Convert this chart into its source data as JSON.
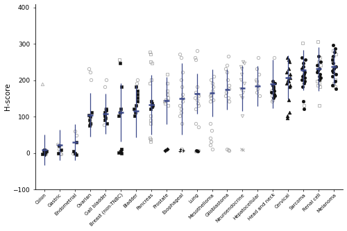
{
  "categories": [
    "Colon",
    "Gastric",
    "Endometrial",
    "Ovarian",
    "Gall bladder",
    "Breast (non-TNBC)",
    "Bladder",
    "Pancreas",
    "Prostate",
    "Esophageal",
    "Lung",
    "Mesothelioma",
    "Glioblastoma",
    "Neuroendocrine",
    "Hepatocellular",
    "Head and neck",
    "Cervical",
    "Sarcoma",
    "Renal cell",
    "Melanoma"
  ],
  "ylim": [
    -100,
    410
  ],
  "yticks": [
    -100,
    0,
    100,
    200,
    300,
    400
  ],
  "ylabel": "H-score",
  "error_color": "#3d4a8a",
  "groups": {
    "Colon": {
      "mean": 10,
      "sd": 42,
      "pts_dark": [
        {
          "y": -5,
          "m": "v"
        },
        {
          "y": 5,
          "m": "s"
        },
        {
          "y": 10,
          "m": "s"
        },
        {
          "y": 0,
          "m": "s"
        },
        {
          "y": -3,
          "m": "s"
        },
        {
          "y": 8,
          "m": "s"
        }
      ],
      "pts_gray": [
        {
          "y": 190,
          "m": "^"
        },
        {
          "y": -2,
          "m": "o"
        },
        {
          "y": 3,
          "m": "o"
        }
      ]
    },
    "Gastric": {
      "mean": 22,
      "sd": 42,
      "pts_dark": [
        {
          "y": 20,
          "m": "s"
        },
        {
          "y": 10,
          "m": "s"
        },
        {
          "y": 0,
          "m": "s"
        }
      ],
      "pts_gray": [
        {
          "y": 5,
          "m": "o"
        },
        {
          "y": 0,
          "m": "o"
        },
        {
          "y": -3,
          "m": "o"
        },
        {
          "y": 12,
          "m": "o"
        },
        {
          "y": 25,
          "m": "o"
        }
      ]
    },
    "Endometrial": {
      "mean": 30,
      "sd": 50,
      "pts_dark": [
        {
          "y": 30,
          "m": "s"
        },
        {
          "y": 5,
          "m": "s"
        },
        {
          "y": 0,
          "m": "s"
        },
        {
          "y": -5,
          "m": "s"
        }
      ],
      "pts_gray": [
        {
          "y": 60,
          "m": "o"
        },
        {
          "y": 50,
          "m": "o"
        },
        {
          "y": 0,
          "m": "o"
        },
        {
          "y": -3,
          "m": "o"
        }
      ]
    },
    "Ovarian": {
      "mean": 105,
      "sd": 60,
      "pts_dark": [
        {
          "y": 105,
          "m": "s"
        },
        {
          "y": 82,
          "m": "s"
        },
        {
          "y": 76,
          "m": "s"
        },
        {
          "y": 100,
          "m": "s"
        },
        {
          "y": 92,
          "m": "s"
        },
        {
          "y": 112,
          "m": "s"
        }
      ],
      "pts_gray": [
        {
          "y": 232,
          "m": "o"
        },
        {
          "y": 222,
          "m": "o"
        },
        {
          "y": 202,
          "m": "o"
        },
        {
          "y": 82,
          "m": "o"
        },
        {
          "y": 77,
          "m": "o"
        }
      ]
    },
    "Gall bladder": {
      "mean": 108,
      "sd": 55,
      "pts_dark": [
        {
          "y": 112,
          "m": "s"
        },
        {
          "y": 102,
          "m": "s"
        },
        {
          "y": 122,
          "m": "s"
        },
        {
          "y": 107,
          "m": "s"
        },
        {
          "y": 97,
          "m": "s"
        },
        {
          "y": 117,
          "m": "s"
        },
        {
          "y": 92,
          "m": "s"
        },
        {
          "y": 82,
          "m": "s"
        }
      ],
      "pts_gray": [
        {
          "y": 202,
          "m": "o"
        },
        {
          "y": 182,
          "m": "o"
        },
        {
          "y": 122,
          "m": "o"
        },
        {
          "y": 77,
          "m": "o"
        }
      ]
    },
    "Breast (non-TNBC)": {
      "mean": 112,
      "sd": 80,
      "pts_dark": [
        {
          "y": 248,
          "m": "s"
        },
        {
          "y": 183,
          "m": "s"
        },
        {
          "y": 122,
          "m": "s"
        },
        {
          "y": 112,
          "m": "s"
        },
        {
          "y": 102,
          "m": "s"
        },
        {
          "y": 2,
          "m": "s"
        },
        {
          "y": 0,
          "m": "s"
        },
        {
          "y": 5,
          "m": "s"
        },
        {
          "y": 12,
          "m": "s"
        }
      ],
      "pts_gray": [
        {
          "y": 257,
          "m": "s"
        },
        {
          "y": 12,
          "m": "s"
        },
        {
          "y": 5,
          "m": "s"
        }
      ]
    },
    "Bladder": {
      "mean": 115,
      "sd": 72,
      "pts_dark": [
        {
          "y": 122,
          "m": "s"
        },
        {
          "y": 112,
          "m": "s"
        },
        {
          "y": 132,
          "m": "s"
        },
        {
          "y": 102,
          "m": "s"
        },
        {
          "y": 142,
          "m": "s"
        },
        {
          "y": 162,
          "m": "s"
        },
        {
          "y": 172,
          "m": "s"
        },
        {
          "y": 182,
          "m": "s"
        },
        {
          "y": 152,
          "m": "s"
        }
      ],
      "pts_gray": [
        {
          "y": 202,
          "m": "o"
        },
        {
          "y": 192,
          "m": "o"
        }
      ]
    },
    "Pancreas": {
      "mean": 133,
      "sd": 82,
      "pts_dark": [
        {
          "y": 132,
          "m": "s"
        },
        {
          "y": 137,
          "m": "s"
        },
        {
          "y": 142,
          "m": "s"
        },
        {
          "y": 122,
          "m": "s"
        },
        {
          "y": 127,
          "m": "s"
        },
        {
          "y": 132,
          "m": "s"
        }
      ],
      "pts_gray": [
        {
          "y": 277,
          "m": "s"
        },
        {
          "y": 272,
          "m": "s"
        },
        {
          "y": 252,
          "m": "s"
        },
        {
          "y": 247,
          "m": "s"
        },
        {
          "y": 202,
          "m": "s"
        },
        {
          "y": 192,
          "m": "s"
        },
        {
          "y": 102,
          "m": "s"
        },
        {
          "y": 92,
          "m": "s"
        },
        {
          "y": 82,
          "m": "s"
        },
        {
          "y": 42,
          "m": "s"
        },
        {
          "y": 37,
          "m": "s"
        },
        {
          "y": 32,
          "m": "s"
        }
      ]
    },
    "Prostate": {
      "mean": 145,
      "sd": 65,
      "pts_dark": [
        {
          "y": 7,
          "m": "D"
        },
        {
          "y": 12,
          "m": "D"
        }
      ],
      "pts_gray": [
        {
          "y": 217,
          "m": "s"
        },
        {
          "y": 192,
          "m": "s"
        },
        {
          "y": 152,
          "m": "s"
        },
        {
          "y": 142,
          "m": "s"
        },
        {
          "y": 132,
          "m": "s"
        },
        {
          "y": 137,
          "m": "s"
        },
        {
          "y": 147,
          "m": "s"
        },
        {
          "y": 162,
          "m": "s"
        },
        {
          "y": 172,
          "m": "s"
        }
      ]
    },
    "Esophageal": {
      "mean": 150,
      "sd": 98,
      "pts_dark": [
        {
          "y": 7,
          "m": "+"
        },
        {
          "y": 5,
          "m": "+"
        },
        {
          "y": 12,
          "m": "+"
        }
      ],
      "pts_gray": [
        {
          "y": 272,
          "m": "o"
        },
        {
          "y": 262,
          "m": "o"
        },
        {
          "y": 222,
          "m": "o"
        },
        {
          "y": 202,
          "m": "o"
        },
        {
          "y": 182,
          "m": "o"
        },
        {
          "y": 162,
          "m": "o"
        },
        {
          "y": 152,
          "m": "o"
        },
        {
          "y": 142,
          "m": "o"
        },
        {
          "y": 132,
          "m": "o"
        },
        {
          "y": 122,
          "m": "o"
        },
        {
          "y": 112,
          "m": "o"
        },
        {
          "y": 102,
          "m": "o"
        },
        {
          "y": 82,
          "m": "o"
        },
        {
          "y": 12,
          "m": "o"
        },
        {
          "y": 7,
          "m": "o"
        }
      ]
    },
    "Lung": {
      "mean": 163,
      "sd": 55,
      "pts_dark": [
        {
          "y": 7,
          "m": "o"
        },
        {
          "y": 5,
          "m": "o"
        }
      ],
      "pts_gray": [
        {
          "y": 282,
          "m": "o"
        },
        {
          "y": 262,
          "m": "o"
        },
        {
          "y": 257,
          "m": "o"
        },
        {
          "y": 182,
          "m": "o"
        },
        {
          "y": 167,
          "m": "o"
        },
        {
          "y": 162,
          "m": "o"
        },
        {
          "y": 157,
          "m": "o"
        },
        {
          "y": 152,
          "m": "o"
        },
        {
          "y": 147,
          "m": "o"
        },
        {
          "y": 137,
          "m": "o"
        },
        {
          "y": 132,
          "m": "o"
        },
        {
          "y": 122,
          "m": "o"
        },
        {
          "y": 82,
          "m": "o"
        },
        {
          "y": 72,
          "m": "o"
        },
        {
          "y": 7,
          "m": "o"
        },
        {
          "y": 5,
          "m": "o"
        }
      ]
    },
    "Mesothelioma": {
      "mean": 165,
      "sd": 65,
      "pts_dark": [],
      "pts_gray": [
        {
          "y": 212,
          "m": "o"
        },
        {
          "y": 202,
          "m": "o"
        },
        {
          "y": 192,
          "m": "o"
        },
        {
          "y": 182,
          "m": "o"
        },
        {
          "y": 172,
          "m": "o"
        },
        {
          "y": 162,
          "m": "o"
        },
        {
          "y": 157,
          "m": "o"
        },
        {
          "y": 152,
          "m": "o"
        },
        {
          "y": 147,
          "m": "o"
        },
        {
          "y": 142,
          "m": "o"
        },
        {
          "y": 82,
          "m": "o"
        },
        {
          "y": 62,
          "m": "o"
        },
        {
          "y": 42,
          "m": "o"
        },
        {
          "y": 32,
          "m": "o"
        },
        {
          "y": 22,
          "m": "o"
        },
        {
          "y": 12,
          "m": "o"
        }
      ]
    },
    "Glioblastoma": {
      "mean": 175,
      "sd": 55,
      "pts_dark": [],
      "pts_gray": [
        {
          "y": 267,
          "m": "o"
        },
        {
          "y": 242,
          "m": "o"
        },
        {
          "y": 232,
          "m": "o"
        },
        {
          "y": 222,
          "m": "o"
        },
        {
          "y": 202,
          "m": "o"
        },
        {
          "y": 187,
          "m": "o"
        },
        {
          "y": 177,
          "m": "o"
        },
        {
          "y": 167,
          "m": "o"
        },
        {
          "y": 157,
          "m": "o"
        },
        {
          "y": 152,
          "m": "o"
        },
        {
          "y": 142,
          "m": "o"
        },
        {
          "y": 12,
          "m": "o"
        },
        {
          "y": 10,
          "m": "o"
        },
        {
          "y": 8,
          "m": "o"
        }
      ]
    },
    "Neuroendocrine": {
      "mean": 178,
      "sd": 62,
      "pts_dark": [],
      "pts_gray": [
        {
          "y": 252,
          "m": "v"
        },
        {
          "y": 247,
          "m": "v"
        },
        {
          "y": 237,
          "m": "v"
        },
        {
          "y": 232,
          "m": "v"
        },
        {
          "y": 217,
          "m": "v"
        },
        {
          "y": 202,
          "m": "v"
        },
        {
          "y": 192,
          "m": "v"
        },
        {
          "y": 177,
          "m": "v"
        },
        {
          "y": 167,
          "m": "v"
        },
        {
          "y": 157,
          "m": "v"
        },
        {
          "y": 152,
          "m": "v"
        },
        {
          "y": 102,
          "m": "v"
        },
        {
          "y": 12,
          "m": "x"
        },
        {
          "y": 10,
          "m": "x"
        }
      ]
    },
    "Hepatocellular": {
      "mean": 185,
      "sd": 55,
      "pts_dark": [],
      "pts_gray": [
        {
          "y": 262,
          "m": "o"
        },
        {
          "y": 232,
          "m": "o"
        },
        {
          "y": 217,
          "m": "o"
        },
        {
          "y": 202,
          "m": "o"
        },
        {
          "y": 197,
          "m": "o"
        },
        {
          "y": 187,
          "m": "o"
        },
        {
          "y": 177,
          "m": "o"
        },
        {
          "y": 167,
          "m": "o"
        },
        {
          "y": 157,
          "m": "o"
        }
      ]
    },
    "Head and neck": {
      "mean": 190,
      "sd": 67,
      "pts_dark": [
        {
          "y": 197,
          "m": "o"
        },
        {
          "y": 192,
          "m": "o"
        },
        {
          "y": 187,
          "m": "o"
        },
        {
          "y": 182,
          "m": "o"
        },
        {
          "y": 177,
          "m": "o"
        },
        {
          "y": 172,
          "m": "o"
        },
        {
          "y": 167,
          "m": "o"
        },
        {
          "y": 162,
          "m": "o"
        },
        {
          "y": 157,
          "m": "o"
        },
        {
          "y": 152,
          "m": "o"
        }
      ],
      "pts_gray": [
        {
          "y": 262,
          "m": "o"
        },
        {
          "y": 172,
          "m": "o"
        },
        {
          "y": 167,
          "m": "o"
        },
        {
          "y": 157,
          "m": "o"
        },
        {
          "y": 147,
          "m": "o"
        },
        {
          "y": 142,
          "m": "o"
        }
      ]
    },
    "Cervical": {
      "mean": 208,
      "sd": 60,
      "pts_dark": [
        {
          "y": 262,
          "m": "^"
        },
        {
          "y": 257,
          "m": "^"
        },
        {
          "y": 252,
          "m": "^"
        },
        {
          "y": 232,
          "m": "^"
        },
        {
          "y": 222,
          "m": "^"
        },
        {
          "y": 217,
          "m": "^"
        },
        {
          "y": 207,
          "m": "^"
        },
        {
          "y": 202,
          "m": "^"
        },
        {
          "y": 197,
          "m": "^"
        },
        {
          "y": 192,
          "m": "^"
        },
        {
          "y": 187,
          "m": "^"
        },
        {
          "y": 182,
          "m": "^"
        },
        {
          "y": 147,
          "m": "^"
        },
        {
          "y": 112,
          "m": "^"
        },
        {
          "y": 102,
          "m": "^"
        },
        {
          "y": 97,
          "m": "^"
        }
      ],
      "pts_gray": []
    },
    "Sarcoma": {
      "mean": 228,
      "sd": 55,
      "pts_dark": [
        {
          "y": 262,
          "m": "o"
        },
        {
          "y": 257,
          "m": "o"
        },
        {
          "y": 247,
          "m": "o"
        },
        {
          "y": 237,
          "m": "o"
        },
        {
          "y": 232,
          "m": "o"
        },
        {
          "y": 227,
          "m": "o"
        },
        {
          "y": 222,
          "m": "o"
        },
        {
          "y": 217,
          "m": "o"
        },
        {
          "y": 212,
          "m": "o"
        },
        {
          "y": 207,
          "m": "o"
        },
        {
          "y": 202,
          "m": "o"
        },
        {
          "y": 197,
          "m": "o"
        },
        {
          "y": 192,
          "m": "o"
        },
        {
          "y": 182,
          "m": "o"
        },
        {
          "y": 142,
          "m": "o"
        },
        {
          "y": 122,
          "m": "o"
        }
      ],
      "pts_gray": [
        {
          "y": 302,
          "m": "s"
        },
        {
          "y": 132,
          "m": "s"
        }
      ]
    },
    "Renal cell": {
      "mean": 232,
      "sd": 60,
      "pts_dark": [
        {
          "y": 267,
          "m": "o"
        },
        {
          "y": 252,
          "m": "o"
        },
        {
          "y": 242,
          "m": "o"
        },
        {
          "y": 232,
          "m": "o"
        },
        {
          "y": 227,
          "m": "o"
        },
        {
          "y": 222,
          "m": "o"
        },
        {
          "y": 217,
          "m": "o"
        },
        {
          "y": 212,
          "m": "o"
        },
        {
          "y": 207,
          "m": "o"
        },
        {
          "y": 202,
          "m": "o"
        }
      ],
      "pts_gray": [
        {
          "y": 307,
          "m": "s"
        },
        {
          "y": 262,
          "m": "s"
        },
        {
          "y": 252,
          "m": "s"
        },
        {
          "y": 242,
          "m": "s"
        },
        {
          "y": 202,
          "m": "s"
        },
        {
          "y": 197,
          "m": "s"
        },
        {
          "y": 192,
          "m": "s"
        },
        {
          "y": 187,
          "m": "s"
        },
        {
          "y": 182,
          "m": "s"
        },
        {
          "y": 132,
          "m": "s"
        }
      ]
    },
    "Melanoma": {
      "mean": 238,
      "sd": 50,
      "pts_dark": [
        {
          "y": 297,
          "m": "o"
        },
        {
          "y": 287,
          "m": "o"
        },
        {
          "y": 277,
          "m": "o"
        },
        {
          "y": 267,
          "m": "o"
        },
        {
          "y": 257,
          "m": "o"
        },
        {
          "y": 247,
          "m": "o"
        },
        {
          "y": 237,
          "m": "o"
        },
        {
          "y": 232,
          "m": "o"
        },
        {
          "y": 227,
          "m": "o"
        },
        {
          "y": 222,
          "m": "o"
        },
        {
          "y": 217,
          "m": "o"
        },
        {
          "y": 212,
          "m": "o"
        },
        {
          "y": 197,
          "m": "o"
        },
        {
          "y": 187,
          "m": "o"
        },
        {
          "y": 177,
          "m": "o"
        }
      ],
      "pts_gray": [
        {
          "y": 282,
          "m": "s"
        },
        {
          "y": 272,
          "m": "s"
        },
        {
          "y": 262,
          "m": "s"
        },
        {
          "y": 252,
          "m": "s"
        },
        {
          "y": 202,
          "m": "s"
        },
        {
          "y": 192,
          "m": "s"
        },
        {
          "y": 187,
          "m": "s"
        },
        {
          "y": 182,
          "m": "s"
        }
      ]
    }
  }
}
